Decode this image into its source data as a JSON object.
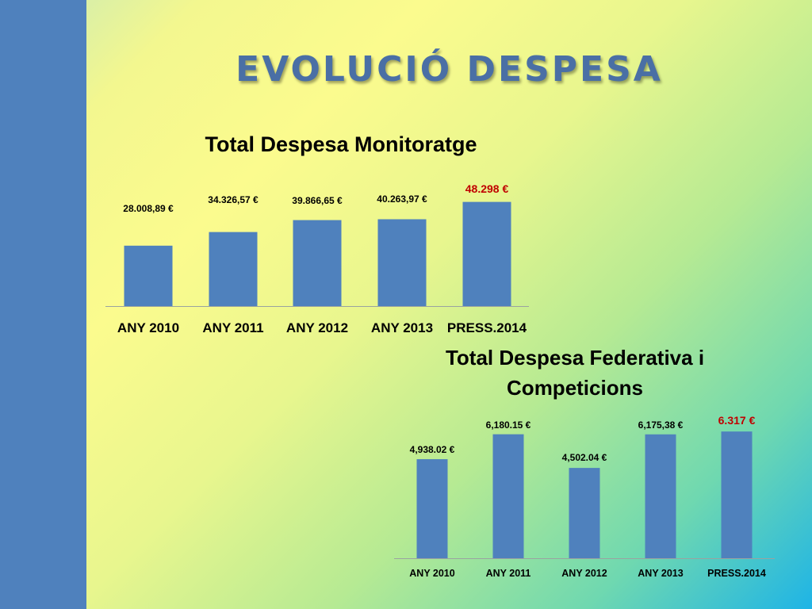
{
  "slide": {
    "title": "EVOLUCIÓ DESPESA"
  },
  "colors": {
    "side_bar": "#4f81bd",
    "bar": "#4f81bd",
    "highlight_label_1": "#c00000",
    "highlight_label_2": "#d9534f"
  },
  "chart_data": [
    {
      "type": "bar",
      "title": "Total Despesa Monitoratge",
      "categories": [
        "ANY 2010",
        "ANY 2011",
        "ANY 2012",
        "ANY 2013",
        "PRESS.2014"
      ],
      "values": [
        28008.89,
        34326.57,
        39866.65,
        40263.97,
        48298
      ],
      "data_labels": [
        "28.008,89 €",
        "34.326,57 €",
        "39.866,65 €",
        "40.263,97 €",
        "48.298 €"
      ],
      "highlight_index": 4,
      "xlabel": "",
      "ylabel": "",
      "grid": false,
      "legend": "none"
    },
    {
      "type": "bar",
      "title": "Total Despesa Federativa i Competicions",
      "categories": [
        "ANY 2010",
        "ANY 2011",
        "ANY 2012",
        "ANY 2013",
        "PRESS.2014"
      ],
      "values": [
        4938.02,
        6180.15,
        4502.04,
        6175.38,
        6317
      ],
      "data_labels": [
        "4,938.02 €",
        "6,180.15 €",
        "4,502.04 €",
        "6,175,38 €",
        "6.317 €"
      ],
      "highlight_index": 4,
      "xlabel": "",
      "ylabel": "",
      "grid": false,
      "legend": "none"
    }
  ]
}
